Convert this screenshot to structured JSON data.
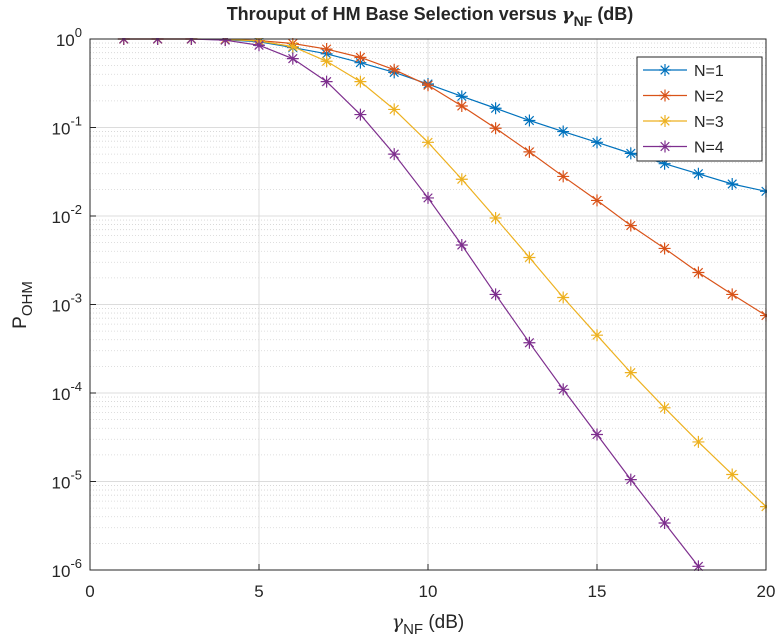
{
  "chart_data": {
    "type": "line",
    "title": {
      "text": "Throuput of HM Base Selection versus ",
      "symbol": "γ",
      "sub": "NF",
      "suffix": " (dB)"
    },
    "xlabel": {
      "symbol": "γ",
      "sub": "NF",
      "suffix": " (dB)"
    },
    "ylabel": {
      "text": "P",
      "sub": "OHM"
    },
    "x": [
      1,
      2,
      3,
      4,
      5,
      6,
      7,
      8,
      9,
      10,
      11,
      12,
      13,
      14,
      15,
      16,
      17,
      18,
      19,
      20
    ],
    "series": [
      {
        "name": "N=1",
        "color": "#0072bd",
        "values": [
          1,
          1,
          1,
          0.98,
          0.93,
          0.8,
          0.68,
          0.54,
          0.42,
          0.31,
          0.225,
          0.165,
          0.12,
          0.09,
          0.068,
          0.051,
          0.039,
          0.03,
          0.023,
          0.019
        ]
      },
      {
        "name": "N=2",
        "color": "#d95319",
        "values": [
          1,
          1,
          1,
          0.99,
          0.96,
          0.89,
          0.77,
          0.62,
          0.45,
          0.3,
          0.175,
          0.098,
          0.053,
          0.028,
          0.015,
          0.0078,
          0.0043,
          0.0023,
          0.0013,
          0.00075
        ]
      },
      {
        "name": "N=3",
        "color": "#edb120",
        "values": [
          1,
          1,
          1,
          0.99,
          0.95,
          0.82,
          0.56,
          0.33,
          0.16,
          0.068,
          0.026,
          0.0095,
          0.0034,
          0.0012,
          0.00045,
          0.00017,
          6.8e-05,
          2.8e-05,
          1.2e-05,
          5.2e-06
        ]
      },
      {
        "name": "N=4",
        "color": "#7e2f8e",
        "values": [
          1,
          1,
          1,
          0.97,
          0.85,
          0.6,
          0.33,
          0.14,
          0.05,
          0.016,
          0.0047,
          0.0013,
          0.00037,
          0.00011,
          3.4e-05,
          1.05e-05,
          3.4e-06,
          1.1e-06,
          null,
          null
        ]
      }
    ],
    "xlim": [
      0,
      20
    ],
    "xticks": [
      0,
      5,
      10,
      15,
      20
    ],
    "ylim": [
      1e-06,
      1
    ],
    "yticks": [
      {
        "value": 1e-06,
        "label": "10",
        "exponent": "-6"
      },
      {
        "value": 1e-05,
        "label": "10",
        "exponent": "-5"
      },
      {
        "value": 0.0001,
        "label": "10",
        "exponent": "-4"
      },
      {
        "value": 0.001,
        "label": "10",
        "exponent": "-3"
      },
      {
        "value": 0.01,
        "label": "10",
        "exponent": "-2"
      },
      {
        "value": 0.1,
        "label": "10",
        "exponent": "-1"
      },
      {
        "value": 1,
        "label": "10",
        "exponent": "0"
      }
    ],
    "ylog": true,
    "grid": true,
    "minor_grid": true,
    "legend": "northeast"
  }
}
